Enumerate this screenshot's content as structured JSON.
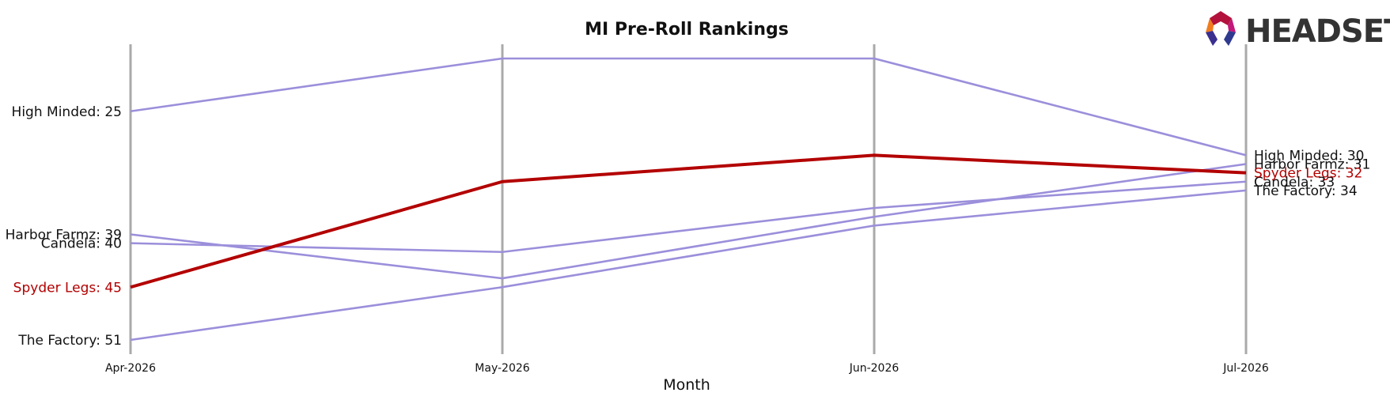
{
  "logo": {
    "text": "HEADSET"
  },
  "chart_data": {
    "type": "line",
    "title": "MI Pre-Roll Rankings",
    "xlabel": "Month",
    "ylabel": "",
    "x": [
      "Apr-2026",
      "May-2026",
      "Jun-2026",
      "Jul-2026"
    ],
    "y_inverted": true,
    "ylim": [
      22,
      53
    ],
    "grid": false,
    "legend": "none",
    "series": [
      {
        "name": "High Minded",
        "values": [
          25,
          19,
          19,
          30
        ],
        "highlight": false,
        "color": "#9b8fdb",
        "start_label": "High Minded: 25",
        "end_label": "High Minded: 30"
      },
      {
        "name": "Harbor Farmz",
        "values": [
          39,
          44,
          37,
          31
        ],
        "highlight": false,
        "color": "#9b8fdb",
        "start_label": "Harbor Farmz: 39",
        "end_label": "Harbor Farmz: 31"
      },
      {
        "name": "Candela",
        "values": [
          40,
          41,
          36,
          33
        ],
        "highlight": false,
        "color": "#9b8fdb",
        "start_label": "Candela: 40",
        "end_label": "Candela: 33"
      },
      {
        "name": "The Factory",
        "values": [
          51,
          45,
          38,
          34
        ],
        "highlight": false,
        "color": "#9b8fdb",
        "start_label": "The Factory: 51",
        "end_label": "The Factory: 34"
      },
      {
        "name": "Spyder Legs",
        "values": [
          45,
          33,
          30,
          32
        ],
        "highlight": true,
        "color": "#b30000",
        "start_label": "Spyder Legs: 45",
        "end_label": "Spyder Legs: 32"
      }
    ]
  }
}
